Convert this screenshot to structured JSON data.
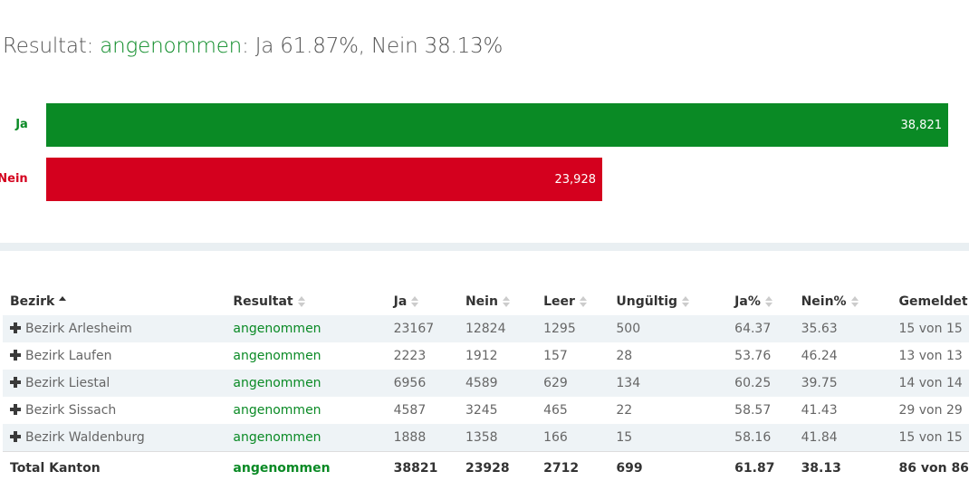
{
  "heading": {
    "prefix": "Resultat: ",
    "status": "angenommen",
    "suffix": ": Ja 61.87%, Nein 38.13%"
  },
  "chart_data": {
    "type": "bar",
    "orientation": "horizontal",
    "categories": [
      "Ja",
      "Nein"
    ],
    "values": [
      38821,
      23928
    ],
    "value_labels": [
      "38,821",
      "23,928"
    ],
    "colors": [
      "#0a8a25",
      "#d4001e"
    ],
    "max": 38821
  },
  "table": {
    "headers": [
      "Bezirk",
      "Resultat",
      "Ja",
      "Nein",
      "Leer",
      "Ungültig",
      "Ja%",
      "Nein%",
      "Gemeldet"
    ],
    "rows": [
      [
        "Bezirk Arlesheim",
        "angenommen",
        "23167",
        "12824",
        "1295",
        "500",
        "64.37",
        "35.63",
        "15 von 15"
      ],
      [
        "Bezirk Laufen",
        "angenommen",
        "2223",
        "1912",
        "157",
        "28",
        "53.76",
        "46.24",
        "13 von 13"
      ],
      [
        "Bezirk Liestal",
        "angenommen",
        "6956",
        "4589",
        "629",
        "134",
        "60.25",
        "39.75",
        "14 von 14"
      ],
      [
        "Bezirk Sissach",
        "angenommen",
        "4587",
        "3245",
        "465",
        "22",
        "58.57",
        "41.43",
        "29 von 29"
      ],
      [
        "Bezirk Waldenburg",
        "angenommen",
        "1888",
        "1358",
        "166",
        "15",
        "58.16",
        "41.84",
        "15 von 15"
      ]
    ],
    "total": [
      "Total Kanton",
      "angenommen",
      "38821",
      "23928",
      "2712",
      "699",
      "61.87",
      "38.13",
      "86 von 86"
    ]
  },
  "colors": {
    "accept": "#0a8a25",
    "reject": "#d4001e"
  },
  "icons": {
    "expand": "plus-icon",
    "sort": "sort-icon",
    "sort_active": "sort-asc-icon"
  }
}
